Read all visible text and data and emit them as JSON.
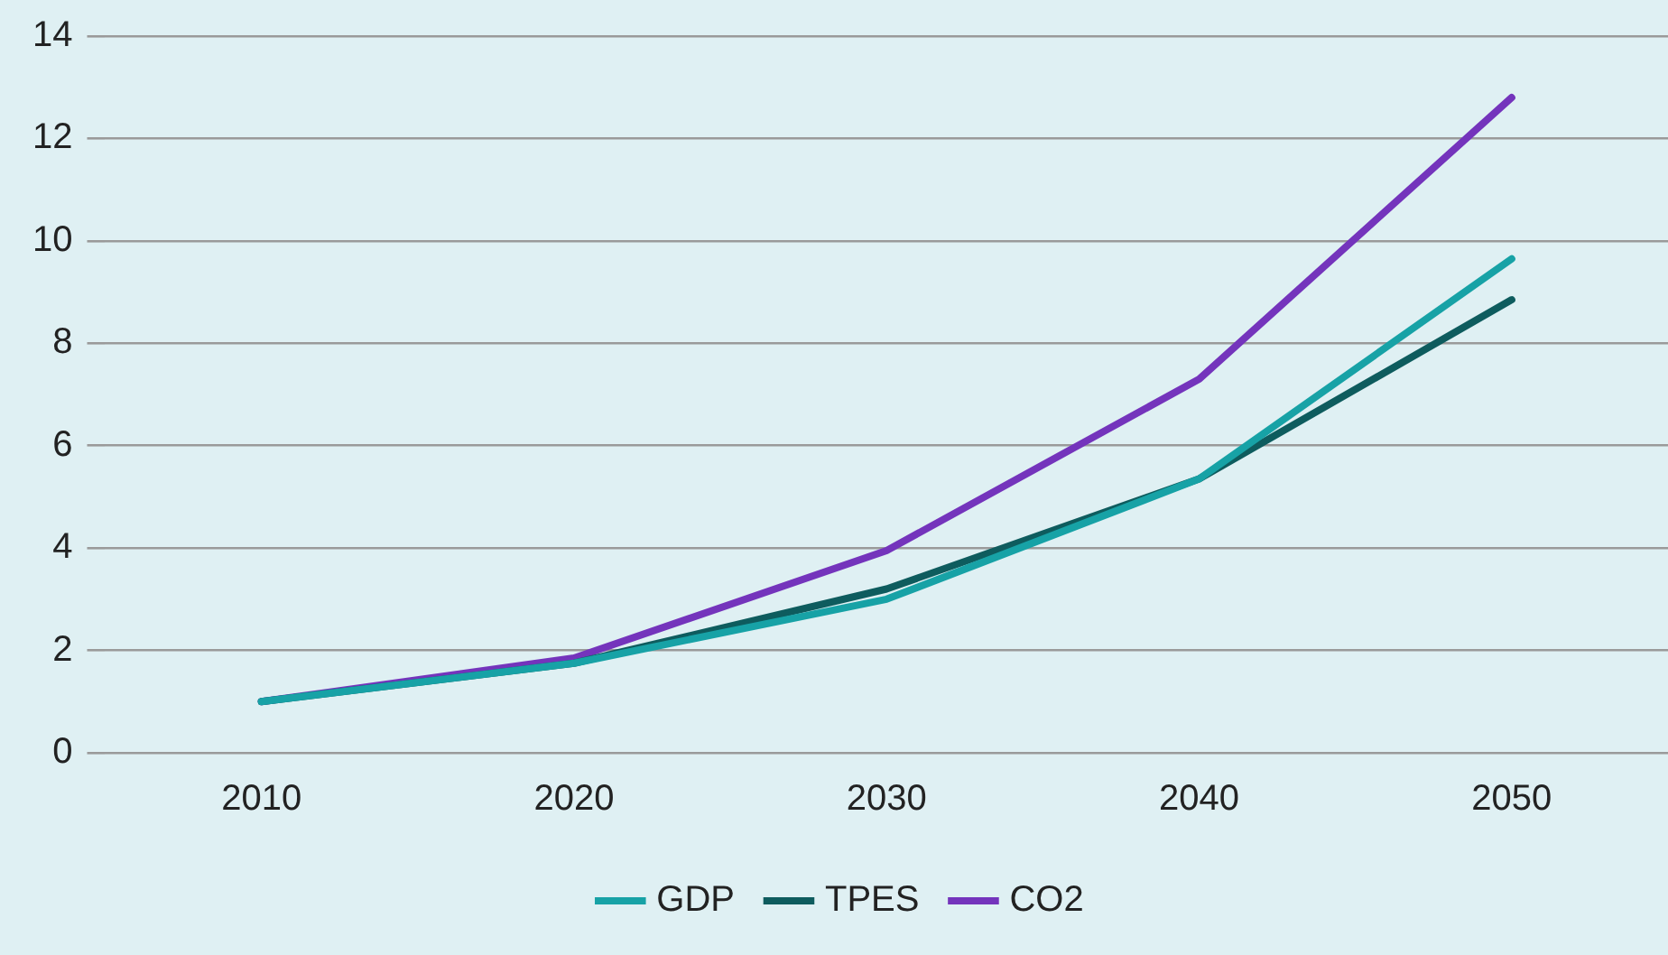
{
  "chart_data": {
    "type": "line",
    "categories": [
      "2010",
      "2020",
      "2030",
      "2040",
      "2050"
    ],
    "series": [
      {
        "name": "GDP",
        "color": "#17a2a6",
        "values": [
          1,
          1.75,
          3.0,
          5.35,
          9.65
        ]
      },
      {
        "name": "TPES",
        "color": "#0e5c5e",
        "values": [
          1,
          1.75,
          3.2,
          5.35,
          8.85
        ]
      },
      {
        "name": "CO2",
        "color": "#7434bc",
        "values": [
          1,
          1.85,
          3.95,
          7.3,
          12.8
        ]
      }
    ],
    "ylim": [
      0,
      14
    ],
    "yticks": [
      0,
      2,
      4,
      6,
      8,
      10,
      12,
      14
    ],
    "grid": "y",
    "legend": "bottom",
    "marker": "none",
    "line_style": "solid"
  }
}
